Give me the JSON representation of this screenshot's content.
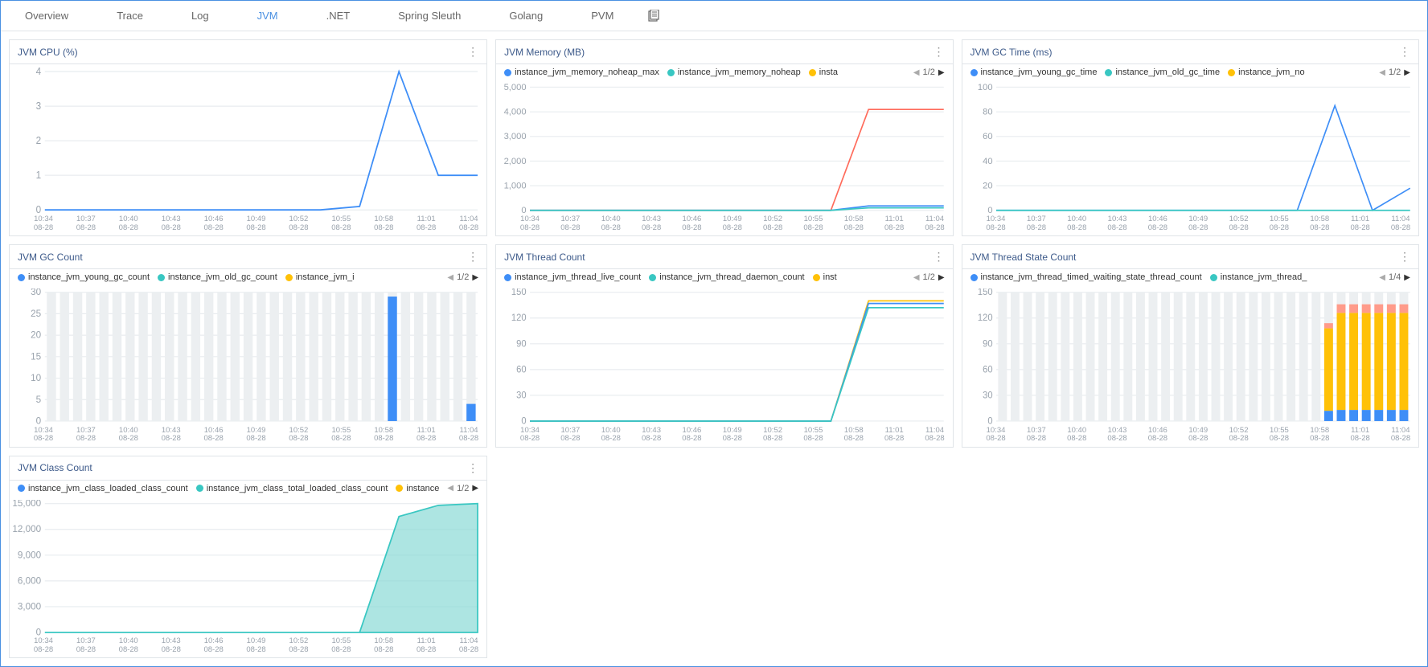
{
  "tabs": [
    "Overview",
    "Trace",
    "Log",
    "JVM",
    ".NET",
    "Spring Sleuth",
    "Golang",
    "PVM"
  ],
  "active_tab": "JVM",
  "x_ticks": [
    "10:34",
    "10:37",
    "10:40",
    "10:43",
    "10:46",
    "10:49",
    "10:52",
    "10:55",
    "10:58",
    "11:01",
    "11:04"
  ],
  "x_date": "08-28",
  "colors": {
    "blue": "#3e8ef7",
    "cyan": "#39c7c2",
    "yellow": "#ffc107",
    "orange": "#ff6b5b",
    "salmon": "#ff9b8a",
    "grid": "#e8ecef",
    "axis_text": "#9aa3ad",
    "bar_bg": "#eceff1"
  },
  "panels": {
    "cpu": {
      "title": "JVM CPU (%)",
      "type": "line",
      "ylim": [
        0,
        4
      ],
      "ytick_step": 1,
      "series": [
        {
          "color": "#3e8ef7",
          "values": [
            0,
            0,
            0,
            0,
            0,
            0,
            0,
            0,
            0.1,
            4,
            1,
            1
          ]
        }
      ]
    },
    "memory": {
      "title": "JVM Memory (MB)",
      "type": "line",
      "ylim": [
        0,
        5000
      ],
      "ytick_step": 1000,
      "legend": [
        {
          "label": "instance_jvm_memory_noheap_max",
          "color": "#3e8ef7"
        },
        {
          "label": "instance_jvm_memory_noheap",
          "color": "#39c7c2"
        },
        {
          "label": "insta",
          "color": "#ffc107"
        }
      ],
      "pager": "1/2",
      "series": [
        {
          "color": "#ff6b5b",
          "values": [
            0,
            0,
            0,
            0,
            0,
            0,
            0,
            0,
            0,
            4096,
            4096,
            4096
          ]
        },
        {
          "color": "#3e8ef7",
          "values": [
            0,
            0,
            0,
            0,
            0,
            0,
            0,
            0,
            0,
            180,
            180,
            180
          ]
        },
        {
          "color": "#39c7c2",
          "values": [
            0,
            0,
            0,
            0,
            0,
            0,
            0,
            0,
            0,
            100,
            100,
            100
          ]
        }
      ]
    },
    "gc_time": {
      "title": "JVM GC Time (ms)",
      "type": "line",
      "ylim": [
        0,
        100
      ],
      "ytick_step": 20,
      "legend": [
        {
          "label": "instance_jvm_young_gc_time",
          "color": "#3e8ef7"
        },
        {
          "label": "instance_jvm_old_gc_time",
          "color": "#39c7c2"
        },
        {
          "label": "instance_jvm_no",
          "color": "#ffc107"
        }
      ],
      "pager": "1/2",
      "series": [
        {
          "color": "#3e8ef7",
          "values": [
            0,
            0,
            0,
            0,
            0,
            0,
            0,
            0,
            0,
            85,
            0,
            18
          ]
        },
        {
          "color": "#39c7c2",
          "values": [
            0,
            0,
            0,
            0,
            0,
            0,
            0,
            0,
            0,
            0,
            0,
            0
          ]
        }
      ]
    },
    "gc_count": {
      "title": "JVM GC Count",
      "type": "bar",
      "ylim": [
        0,
        30
      ],
      "ytick_step": 5,
      "legend": [
        {
          "label": "instance_jvm_young_gc_count",
          "color": "#3e8ef7"
        },
        {
          "label": "instance_jvm_old_gc_count",
          "color": "#39c7c2"
        },
        {
          "label": "instance_jvm_i",
          "color": "#ffc107"
        }
      ],
      "pager": "1/2",
      "n_bars": 33,
      "bars": [
        {
          "i": 26,
          "stacks": [
            {
              "color": "#3e8ef7",
              "value": 29
            }
          ]
        },
        {
          "i": 32,
          "stacks": [
            {
              "color": "#3e8ef7",
              "value": 4
            }
          ]
        }
      ]
    },
    "thread_count": {
      "title": "JVM Thread Count",
      "type": "line",
      "ylim": [
        0,
        150
      ],
      "ytick_step": 30,
      "legend": [
        {
          "label": "instance_jvm_thread_live_count",
          "color": "#3e8ef7"
        },
        {
          "label": "instance_jvm_thread_daemon_count",
          "color": "#39c7c2"
        },
        {
          "label": "inst",
          "color": "#ffc107"
        }
      ],
      "pager": "1/2",
      "series": [
        {
          "color": "#ffc107",
          "values": [
            0,
            0,
            0,
            0,
            0,
            0,
            0,
            0,
            0,
            140,
            140,
            140
          ]
        },
        {
          "color": "#3e8ef7",
          "values": [
            0,
            0,
            0,
            0,
            0,
            0,
            0,
            0,
            0,
            137,
            137,
            137
          ]
        },
        {
          "color": "#39c7c2",
          "values": [
            0,
            0,
            0,
            0,
            0,
            0,
            0,
            0,
            0,
            132,
            132,
            132
          ]
        }
      ]
    },
    "thread_state": {
      "title": "JVM Thread State Count",
      "type": "bar",
      "ylim": [
        0,
        150
      ],
      "ytick_step": 30,
      "legend": [
        {
          "label": "instance_jvm_thread_timed_waiting_state_thread_count",
          "color": "#3e8ef7"
        },
        {
          "label": "instance_jvm_thread_",
          "color": "#39c7c2"
        }
      ],
      "pager": "1/4",
      "n_bars": 33,
      "bars": [
        {
          "i": 26,
          "stacks": [
            {
              "color": "#3e8ef7",
              "value": 12
            },
            {
              "color": "#ffc107",
              "value": 96
            },
            {
              "color": "#ff9b8a",
              "value": 6
            }
          ]
        },
        {
          "i": 27,
          "stacks": [
            {
              "color": "#3e8ef7",
              "value": 13
            },
            {
              "color": "#ffc107",
              "value": 113
            },
            {
              "color": "#ff9b8a",
              "value": 10
            }
          ]
        },
        {
          "i": 28,
          "stacks": [
            {
              "color": "#3e8ef7",
              "value": 13
            },
            {
              "color": "#ffc107",
              "value": 113
            },
            {
              "color": "#ff9b8a",
              "value": 10
            }
          ]
        },
        {
          "i": 29,
          "stacks": [
            {
              "color": "#3e8ef7",
              "value": 13
            },
            {
              "color": "#ffc107",
              "value": 113
            },
            {
              "color": "#ff9b8a",
              "value": 10
            }
          ]
        },
        {
          "i": 30,
          "stacks": [
            {
              "color": "#3e8ef7",
              "value": 13
            },
            {
              "color": "#ffc107",
              "value": 113
            },
            {
              "color": "#ff9b8a",
              "value": 10
            }
          ]
        },
        {
          "i": 31,
          "stacks": [
            {
              "color": "#3e8ef7",
              "value": 13
            },
            {
              "color": "#ffc107",
              "value": 113
            },
            {
              "color": "#ff9b8a",
              "value": 10
            }
          ]
        },
        {
          "i": 32,
          "stacks": [
            {
              "color": "#3e8ef7",
              "value": 13
            },
            {
              "color": "#ffc107",
              "value": 113
            },
            {
              "color": "#ff9b8a",
              "value": 10
            }
          ]
        }
      ]
    },
    "class_count": {
      "title": "JVM Class Count",
      "type": "area",
      "ylim": [
        0,
        15000
      ],
      "ytick_step": 3000,
      "legend": [
        {
          "label": "instance_jvm_class_loaded_class_count",
          "color": "#3e8ef7"
        },
        {
          "label": "instance_jvm_class_total_loaded_class_count",
          "color": "#39c7c2"
        },
        {
          "label": "instance",
          "color": "#ffc107"
        }
      ],
      "pager": "1/2",
      "series": [
        {
          "color": "#39c7c2",
          "fill": "#8adad6",
          "values": [
            0,
            0,
            0,
            0,
            0,
            0,
            0,
            0,
            0,
            13500,
            14800,
            15000
          ]
        }
      ]
    }
  }
}
